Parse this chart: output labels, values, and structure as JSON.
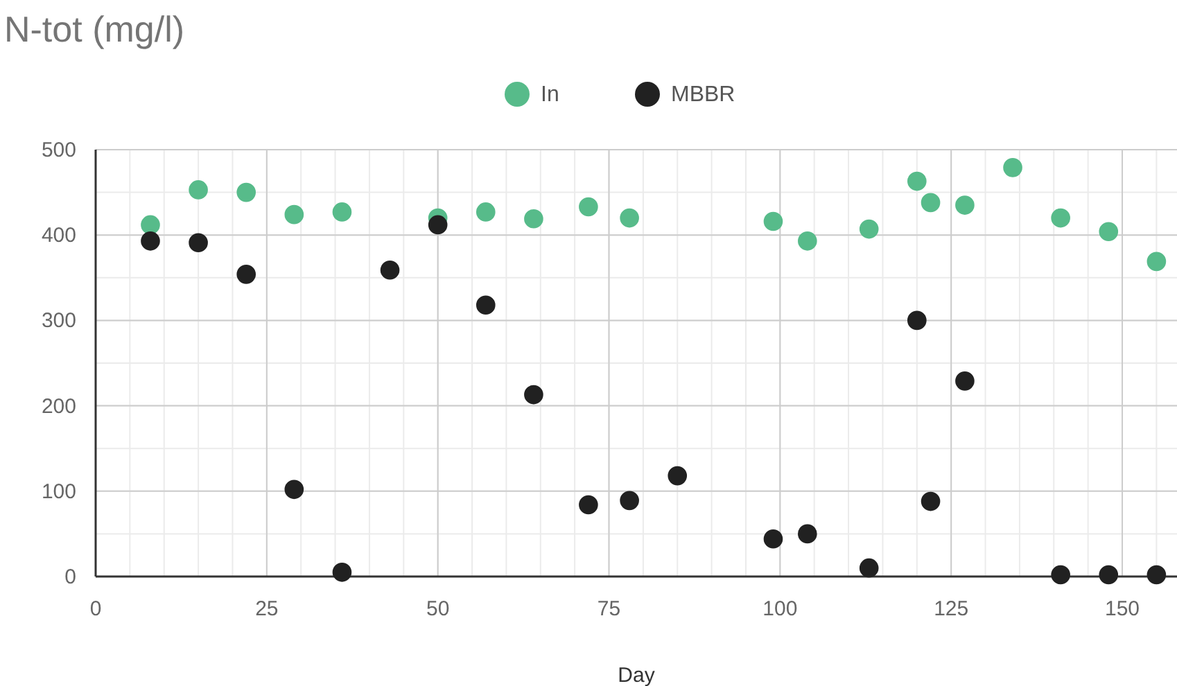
{
  "chart_data": {
    "type": "scatter",
    "title": "N-tot (mg/l)",
    "xlabel": "Day",
    "xlim": [
      0,
      158
    ],
    "xticks": [
      0,
      25,
      50,
      75,
      100,
      125,
      150
    ],
    "ylim": [
      0,
      500
    ],
    "yticks": [
      0,
      100,
      200,
      300,
      400,
      500
    ],
    "grid": true,
    "legend": "top",
    "marker": "circle",
    "series": [
      {
        "name": "In",
        "color": "#57bb8a",
        "x": [
          8,
          15,
          22,
          29,
          36,
          50,
          57,
          64,
          72,
          78,
          99,
          104,
          113,
          120,
          122,
          127,
          134,
          141,
          148,
          155
        ],
        "values": [
          412,
          453,
          450,
          424,
          427,
          420,
          427,
          419,
          433,
          420,
          416,
          393,
          407,
          463,
          438,
          435,
          479,
          420,
          404,
          369
        ]
      },
      {
        "name": "MBBR",
        "color": "#212121",
        "x": [
          8,
          15,
          22,
          29,
          36,
          43,
          50,
          57,
          64,
          72,
          78,
          85,
          99,
          104,
          113,
          120,
          122,
          127,
          141,
          148,
          155
        ],
        "values": [
          393,
          391,
          354,
          102,
          5,
          359,
          412,
          318,
          213,
          84,
          89,
          118,
          44,
          50,
          10,
          300,
          88,
          229,
          2,
          2,
          2
        ]
      }
    ]
  }
}
